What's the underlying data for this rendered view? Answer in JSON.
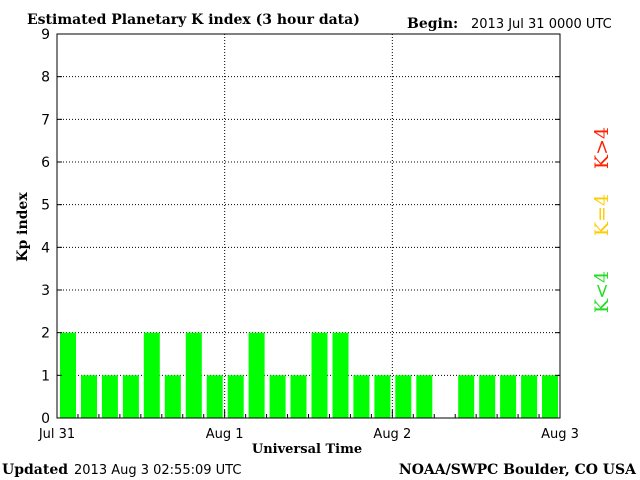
{
  "colors": {
    "background": "#ffffff",
    "axis": "#000000",
    "grid": "#000000",
    "bar": "#00ff00",
    "k_low": "#22dd22",
    "k_eq": "#ffcc00",
    "k_high": "#ff2200"
  },
  "chart_data": {
    "type": "bar",
    "title": "Estimated Planetary K index (3 hour data)",
    "begin_label": "Begin:",
    "begin_value": "2013 Jul 31  0000 UTC",
    "xlabel": "Universal Time",
    "ylabel": "Kp index",
    "ylim": [
      0,
      9
    ],
    "yticks": [
      "0",
      "1",
      "2",
      "3",
      "4",
      "5",
      "6",
      "7",
      "8",
      "9"
    ],
    "xticks": [
      "Jul 31",
      "Aug 1",
      "Aug 2",
      "Aug 3"
    ],
    "grid": true,
    "series": [
      {
        "values": [
          2,
          1,
          1,
          1,
          2,
          1,
          2,
          1,
          1,
          2,
          1,
          1,
          2,
          2,
          1,
          1,
          1,
          1,
          null,
          1,
          1,
          1,
          1,
          1
        ]
      }
    ],
    "legend": {
      "low": "K<4",
      "eq": "K=4",
      "high": "K>4"
    },
    "updated_label": "Updated",
    "updated_value": "2013 Aug  3 02:55:09 UTC",
    "source": "NOAA/SWPC Boulder, CO USA"
  }
}
